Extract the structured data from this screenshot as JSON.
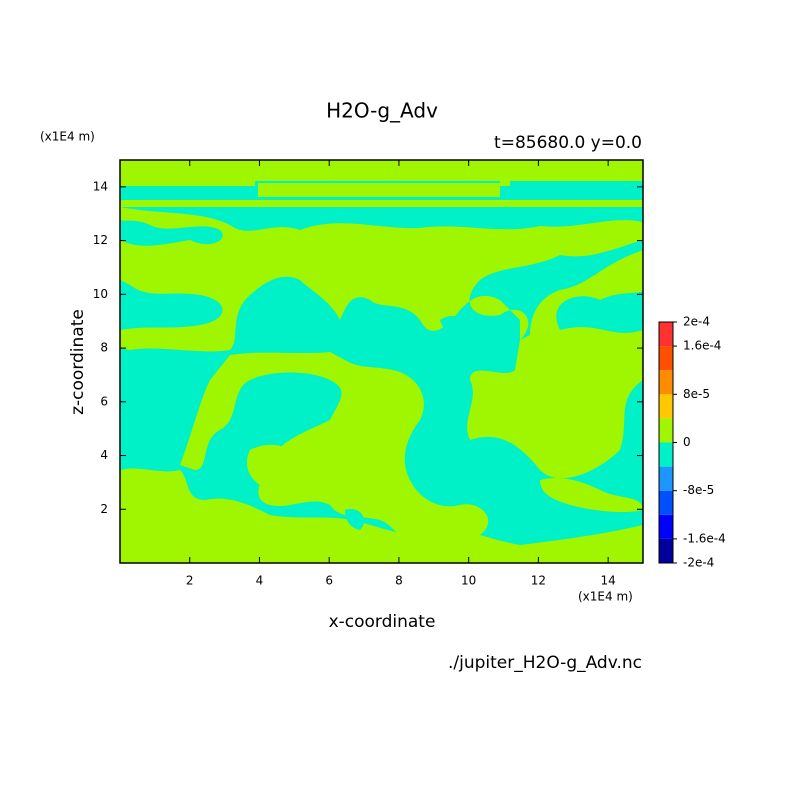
{
  "chart_data": {
    "type": "contour",
    "title": "H2O-g_Adv",
    "subtitle": "t=85680.0 y=0.0",
    "x_label": "x-coordinate",
    "y_label": "z-coordinate",
    "x_unit": "(x1E4 m)",
    "y_unit": "(x1E4 m)",
    "source": "./jupiter_H2O-g_Adv.nc",
    "xlim": [
      0,
      15
    ],
    "xticks": [
      2,
      4,
      6,
      8,
      10,
      12,
      14
    ],
    "ylim": [
      0,
      15
    ],
    "yticks": [
      2,
      4,
      6,
      8,
      10,
      12,
      14
    ],
    "levels": [
      -0.0002,
      -0.00016,
      -0.00012,
      -8e-05,
      -4e-05,
      0,
      4e-05,
      8e-05,
      0.00012,
      0.00016,
      0.0002
    ],
    "colors": [
      "#00009c",
      "#0000ff",
      "#0050ff",
      "#1e96ff",
      "#00f0c8",
      "#a0f500",
      "#ffc800",
      "#ff8c00",
      "#ff5000",
      "#ff3232"
    ],
    "colorbar_ticks": [
      {
        "value": 0.0002,
        "label": "2e-4"
      },
      {
        "value": 0.00016,
        "label": "1.6e-4"
      },
      {
        "value": 8e-05,
        "label": "8e-5"
      },
      0,
      {
        "value": -8e-05,
        "label": "-8e-5"
      },
      {
        "value": -0.00016,
        "label": "-1.6e-4"
      },
      {
        "value": -0.0002,
        "label": "-2e-4"
      }
    ]
  }
}
